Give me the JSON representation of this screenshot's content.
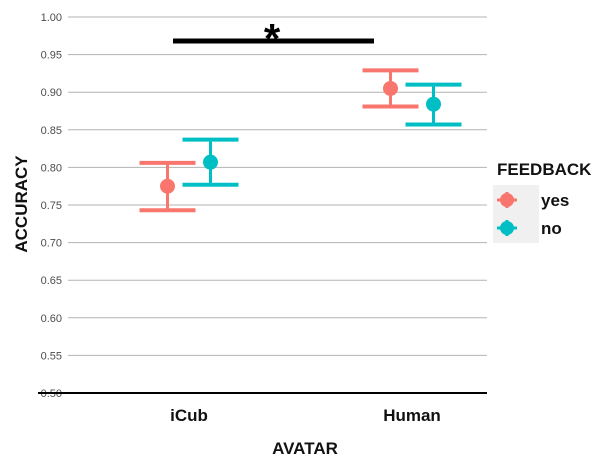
{
  "chart_data": {
    "type": "scatter",
    "xlabel": "AVATAR",
    "ylabel": "ACCURACY",
    "categories": [
      "iCub",
      "Human"
    ],
    "ylim": [
      0.5,
      1.0
    ],
    "yticks": [
      "0.50",
      "0.55",
      "0.60",
      "0.65",
      "0.70",
      "0.75",
      "0.80",
      "0.85",
      "0.90",
      "0.95",
      "1.00"
    ],
    "grid": "horizontal",
    "legend": {
      "title": "FEEDBACK",
      "placement": "right",
      "entries": [
        "yes",
        "no"
      ]
    },
    "series": [
      {
        "name": "yes",
        "color": "#f8766d",
        "values": [
          0.775,
          0.905
        ],
        "lower": [
          0.743,
          0.881
        ],
        "upper": [
          0.806,
          0.929
        ]
      },
      {
        "name": "no",
        "color": "#00bfc4",
        "values": [
          0.807,
          0.884
        ],
        "lower": [
          0.777,
          0.857
        ],
        "upper": [
          0.837,
          0.91
        ]
      }
    ],
    "annotation": {
      "text": "*",
      "between": [
        "iCub",
        "Human"
      ]
    }
  }
}
